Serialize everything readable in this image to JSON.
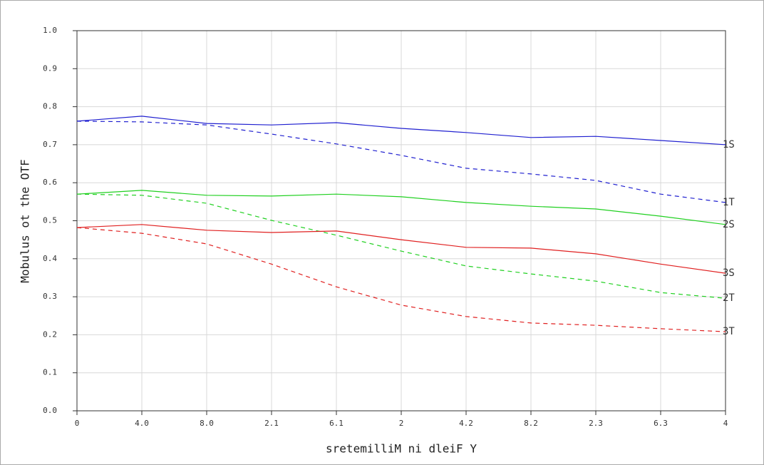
{
  "chart_data": {
    "type": "line",
    "xlabel": "sretemilliM ni dleiF Y",
    "ylabel": "Mobulus ot the OTF",
    "x": [
      0,
      0.4,
      0.8,
      1.2,
      1.6,
      2.0,
      2.4,
      2.8,
      3.2,
      3.6,
      4.0
    ],
    "xlim": [
      0,
      4
    ],
    "ylim": [
      0,
      1
    ],
    "xticks": [
      0,
      {
        "value": 0.4,
        "label": "4.0"
      },
      {
        "value": 0.8,
        "label": "8.0"
      },
      {
        "value": 1.2,
        "label": "2.1"
      },
      {
        "value": 1.6,
        "label": "6.1"
      },
      2,
      {
        "value": 2.4,
        "label": "4.2"
      },
      {
        "value": 2.8,
        "label": "8.2"
      },
      {
        "value": 3.2,
        "label": "2.3"
      },
      {
        "value": 3.6,
        "label": "6.3"
      },
      4
    ],
    "yticks": [
      {
        "value": 0,
        "label": "0.0"
      },
      {
        "value": 0.1,
        "label": "0.1"
      },
      {
        "value": 0.2,
        "label": "0.2"
      },
      {
        "value": 0.3,
        "label": "0.3"
      },
      {
        "value": 0.4,
        "label": "0.4"
      },
      {
        "value": 0.5,
        "label": "0.5"
      },
      {
        "value": 0.6,
        "label": "0.6"
      },
      {
        "value": 0.7,
        "label": "0.7"
      },
      {
        "value": 0.8,
        "label": "0.8"
      },
      {
        "value": 0.9,
        "label": "0.9"
      },
      {
        "value": 1,
        "label": "1.0"
      }
    ],
    "grid": true,
    "series": [
      {
        "name": "1S",
        "color": "#2020d0",
        "dash": false,
        "values": [
          0.762,
          0.775,
          0.756,
          0.752,
          0.758,
          0.743,
          0.732,
          0.719,
          0.722,
          0.711,
          0.7
        ]
      },
      {
        "name": "1T",
        "color": "#2020d0",
        "dash": true,
        "values": [
          0.762,
          0.76,
          0.752,
          0.728,
          0.702,
          0.672,
          0.638,
          0.623,
          0.606,
          0.57,
          0.548
        ]
      },
      {
        "name": "2S",
        "color": "#20d020",
        "dash": false,
        "values": [
          0.57,
          0.58,
          0.567,
          0.565,
          0.57,
          0.563,
          0.548,
          0.538,
          0.531,
          0.512,
          0.49
        ]
      },
      {
        "name": "2T",
        "color": "#20d020",
        "dash": true,
        "values": [
          0.57,
          0.567,
          0.546,
          0.501,
          0.462,
          0.42,
          0.381,
          0.36,
          0.341,
          0.311,
          0.296
        ]
      },
      {
        "name": "3S",
        "color": "#e02020",
        "dash": false,
        "values": [
          0.482,
          0.49,
          0.475,
          0.469,
          0.473,
          0.45,
          0.43,
          0.428,
          0.413,
          0.386,
          0.362
        ]
      },
      {
        "name": "3T",
        "color": "#e02020",
        "dash": true,
        "values": [
          0.482,
          0.467,
          0.439,
          0.386,
          0.326,
          0.278,
          0.248,
          0.231,
          0.225,
          0.216,
          0.208
        ]
      }
    ]
  }
}
